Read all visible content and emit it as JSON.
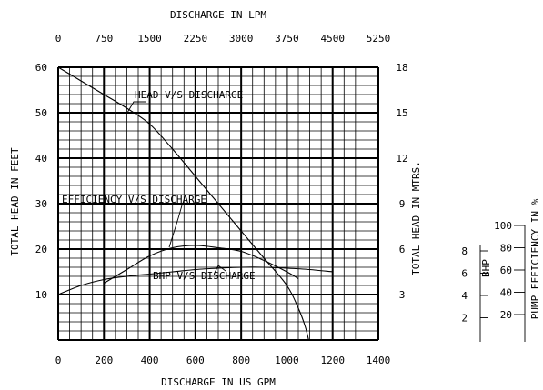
{
  "chart_data": {
    "type": "line",
    "title": "",
    "xlabel": "DISCHARGE IN US GPM",
    "x2label": "DISCHARGE IN LPM",
    "ylabel": "TOTAL HEAD IN FEET",
    "y2label": "TOTAL HEAD IN MTRS.",
    "xlim": [
      0,
      1400
    ],
    "ylim": [
      0,
      60
    ],
    "grid": true,
    "x_ticks": [
      "0",
      "200",
      "400",
      "600",
      "800",
      "1000",
      "1200",
      "1400"
    ],
    "x2_ticks": [
      "0",
      "750",
      "1500",
      "2250",
      "3000",
      "3750",
      "4500",
      "5250"
    ],
    "y_ticks": [
      "10",
      "20",
      "30",
      "40",
      "50",
      "60"
    ],
    "y2_ticks": [
      "3",
      "6",
      "9",
      "12",
      "15",
      "18"
    ],
    "series": [
      {
        "name": "HEAD V/S DISCHARGE",
        "x": [
          0,
          100,
          200,
          300,
          400,
          500,
          600,
          700,
          800,
          900,
          1000,
          1050,
          1080,
          1095
        ],
        "y": [
          60,
          57,
          54,
          51,
          47.5,
          42,
          36,
          30,
          24,
          18,
          12,
          7,
          3,
          0
        ]
      },
      {
        "name": "EFFICIENCY V/S DISCHARGE",
        "x": [
          200,
          300,
          400,
          500,
          600,
          700,
          800,
          900,
          1000,
          1050
        ],
        "y": [
          12.5,
          15.5,
          18.5,
          20.3,
          20.8,
          20.3,
          19.5,
          17.5,
          15,
          13.5
        ]
      },
      {
        "name": "BHP V/S DISCHARGE",
        "x": [
          0,
          100,
          200,
          300,
          400,
          500,
          600,
          700,
          800,
          900,
          1000,
          1100,
          1200
        ],
        "y": [
          10,
          12,
          13.3,
          14,
          14.5,
          15,
          15.5,
          15.8,
          16,
          16,
          15.8,
          15.5,
          15
        ]
      }
    ],
    "labels": {
      "head": "HEAD V/S DISCHARGE",
      "efficiency": "EFFICIENCY V/S DISCHARGE",
      "bhp": "BHP V/S DISCHARGE"
    },
    "bhp_scale": {
      "label": "BHP",
      "ticks": [
        "8",
        "6",
        "4",
        "2"
      ]
    },
    "efficiency_scale": {
      "label": "PUMP EFFICIENCY IN %",
      "ticks": [
        "100",
        "80",
        "60",
        "40",
        "20"
      ]
    }
  }
}
